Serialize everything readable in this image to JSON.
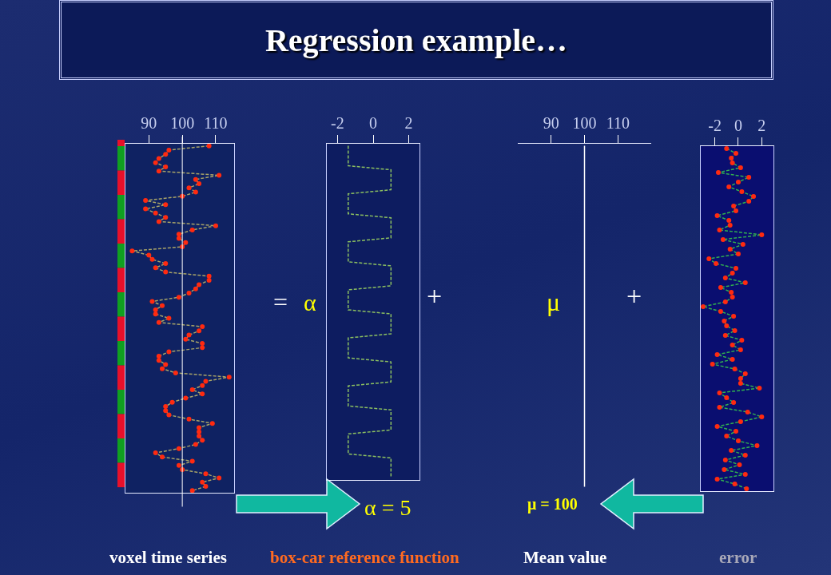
{
  "chart_data": [
    {
      "type": "other",
      "title": "Regression example…"
    },
    {
      "type": "line",
      "orientation": "horizontal",
      "xlabel": "voxel time series",
      "annotations": [
        "="
      ],
      "xlim": [
        83,
        115.5
      ],
      "xticks": [
        90,
        100,
        110
      ],
      "tick_labels": "x",
      "marker": "circle",
      "line_style": "dashed",
      "ref_lines": [
        {
          "axis": "x",
          "value": 100,
          "color": "#ffffff"
        }
      ],
      "categories": [
        null,
        null,
        null,
        null,
        null,
        null,
        null,
        null,
        null,
        null,
        null,
        null,
        null,
        null,
        null,
        null,
        null,
        null,
        null,
        null,
        null,
        null,
        null,
        null,
        null,
        null,
        null,
        null,
        null,
        null,
        null,
        null,
        null,
        null,
        null,
        null,
        null,
        null,
        null,
        null,
        null,
        null,
        null,
        null,
        null,
        null,
        null,
        null,
        null,
        null,
        null,
        null,
        null,
        null,
        null,
        null,
        null,
        null,
        null,
        null,
        null,
        null,
        null,
        null,
        null,
        null,
        null,
        null,
        null,
        null,
        null,
        null,
        null,
        null,
        null,
        null,
        null,
        null,
        null,
        null,
        null,
        null,
        null
      ],
      "series": [
        {
          "color": "#a8a468",
          "values": [
            108,
            96,
            95,
            93,
            92,
            95,
            93,
            111,
            104,
            105,
            102,
            104,
            100,
            89,
            95,
            89,
            92,
            95,
            93,
            110,
            103,
            99,
            99,
            101,
            100,
            85,
            90,
            91,
            95,
            92,
            95,
            108,
            108,
            105,
            104,
            102,
            99,
            91,
            94,
            92,
            92,
            96,
            93,
            106,
            105,
            102,
            101,
            106,
            106,
            96,
            93,
            93,
            95,
            94,
            98,
            114,
            107,
            106,
            103,
            106,
            101,
            97,
            95,
            95,
            96,
            102,
            109,
            105,
            105,
            105,
            106,
            104,
            99,
            92,
            94,
            103,
            99,
            100,
            107,
            111,
            106,
            107,
            103
          ],
          "colors": [
            "#ff2a10",
            "#ff2a10",
            "#ff2a10",
            "#ff2a10",
            "#ff2a10",
            "#ff2a10",
            "#ff2a10",
            "#ff2a10",
            "#ff2a10",
            "#ff2a10",
            "#ff2a10",
            "#ff2a10",
            "#ff2a10",
            "#ff2a10",
            "#ff2a10",
            "#ff2a10",
            "#ff2a10",
            "#ff2a10",
            "#ff2a10",
            "#ff2a10",
            "#ff2a10",
            "#ff2a10",
            "#ff2a10",
            "#ff2a10",
            "#ff2a10",
            "#ff2a10",
            "#ff2a10",
            "#ff2a10",
            "#ff2a10",
            "#ff2a10",
            "#ff2a10",
            "#ff2a10",
            "#ff2a10",
            "#ff2a10",
            "#ff2a10",
            "#ff2a10",
            "#ff2a10",
            "#ff2a10",
            "#ff2a10",
            "#ff2a10",
            "#ff2a10",
            "#ff2a10",
            "#ff2a10",
            "#ff2a10",
            "#ff2a10",
            "#ff2a10",
            "#ff2a10",
            "#ff2a10",
            "#ff2a10",
            "#ff2a10",
            "#ff2a10",
            "#ff2a10",
            "#ff2a10",
            "#ff2a10",
            "#ff2a10",
            "#ff2a10",
            "#ff2a10",
            "#ff2a10",
            "#ff2a10",
            "#ff2a10",
            "#ff2a10",
            "#ff2a10",
            "#ff2a10",
            "#ff2a10",
            "#ff2a10",
            "#ff2a10",
            "#ff2a10",
            "#ff2a10",
            "#ff2a10",
            "#ff2a10",
            "#ff2a10",
            "#ff2a10",
            "#ff2a10",
            "#ff2a10",
            "#ff2a10",
            "#ff2a10",
            "#ff2a10",
            "#ff2a10",
            "#ff2a10",
            "#ff2a10",
            "#ff2a10",
            "#ff2a10",
            "#ff2a10"
          ]
        }
      ]
    },
    {
      "type": "line",
      "orientation": "horizontal",
      "xlabel": "box-car reference function",
      "annotations": [
        "α",
        "+",
        "α = 5"
      ],
      "xlim": [
        -2.6,
        2.6
      ],
      "xticks": [
        -2,
        0,
        2
      ],
      "tick_labels": "x",
      "line_style": "dashed",
      "categories": [
        null,
        null,
        null,
        null,
        null,
        null,
        null,
        null,
        null,
        null,
        null,
        null,
        null,
        null,
        null,
        null,
        null,
        null,
        null,
        null,
        null,
        null,
        null,
        null,
        null,
        null,
        null,
        null,
        null,
        null,
        null,
        null,
        null,
        null,
        null,
        null,
        null,
        null,
        null,
        null,
        null,
        null,
        null,
        null,
        null,
        null,
        null,
        null,
        null,
        null,
        null,
        null,
        null,
        null,
        null,
        null,
        null,
        null,
        null,
        null,
        null,
        null,
        null,
        null,
        null,
        null,
        null,
        null,
        null,
        null,
        null,
        null,
        null,
        null,
        null,
        null,
        null,
        null,
        null,
        null,
        null,
        null,
        null,
        null
      ],
      "series": [
        {
          "color": "#8cc060",
          "values": [
            -1.4,
            -1.4,
            -1.4,
            -1.4,
            -1.4,
            -1.4,
            1,
            1,
            1,
            1,
            1,
            1,
            -1.4,
            -1.4,
            -1.4,
            -1.4,
            -1.4,
            -1.4,
            1,
            1,
            1,
            1,
            1,
            1,
            -1.4,
            -1.4,
            -1.4,
            -1.4,
            -1.4,
            -1.4,
            1,
            1,
            1,
            1,
            1,
            1,
            -1.4,
            -1.4,
            -1.4,
            -1.4,
            -1.4,
            -1.4,
            1,
            1,
            1,
            1,
            1,
            1,
            -1.4,
            -1.4,
            -1.4,
            -1.4,
            -1.4,
            -1.4,
            1,
            1,
            1,
            1,
            1,
            1,
            -1.4,
            -1.4,
            -1.4,
            -1.4,
            -1.4,
            -1.4,
            1,
            1,
            1,
            1,
            1,
            1,
            -1.4,
            -1.4,
            -1.4,
            -1.4,
            -1.4,
            -1.4,
            1,
            1,
            1,
            1,
            1,
            1
          ]
        }
      ]
    },
    {
      "type": "line",
      "orientation": "horizontal",
      "xlabel": "Mean value",
      "annotations": [
        "μ",
        "+",
        "μ = 100"
      ],
      "xlim": [
        80,
        120
      ],
      "xticks": [
        90,
        100,
        110
      ],
      "tick_labels": "x",
      "categories": [
        null,
        null,
        null,
        null,
        null,
        null,
        null,
        null,
        null,
        null,
        null,
        null,
        null,
        null,
        null,
        null,
        null,
        null,
        null,
        null,
        null,
        null,
        null,
        null,
        null,
        null,
        null,
        null,
        null,
        null,
        null,
        null,
        null,
        null,
        null,
        null,
        null,
        null,
        null,
        null,
        null,
        null,
        null,
        null,
        null,
        null,
        null,
        null,
        null,
        null,
        null,
        null,
        null,
        null,
        null,
        null,
        null,
        null,
        null,
        null,
        null,
        null,
        null,
        null,
        null,
        null,
        null,
        null,
        null,
        null,
        null,
        null,
        null,
        null,
        null,
        null,
        null,
        null,
        null,
        null,
        null,
        null,
        null,
        null
      ],
      "series": [
        {
          "color": "#ffffff",
          "values": [
            100,
            100,
            100,
            100,
            100,
            100,
            100,
            100,
            100,
            100,
            100,
            100,
            100,
            100,
            100,
            100,
            100,
            100,
            100,
            100,
            100,
            100,
            100,
            100,
            100,
            100,
            100,
            100,
            100,
            100,
            100,
            100,
            100,
            100,
            100,
            100,
            100,
            100,
            100,
            100,
            100,
            100,
            100,
            100,
            100,
            100,
            100,
            100,
            100,
            100,
            100,
            100,
            100,
            100,
            100,
            100,
            100,
            100,
            100,
            100,
            100,
            100,
            100,
            100,
            100,
            100,
            100,
            100,
            100,
            100,
            100,
            100,
            100,
            100,
            100,
            100,
            100,
            100,
            100,
            100,
            100,
            100,
            100,
            100
          ]
        }
      ]
    },
    {
      "type": "line",
      "orientation": "horizontal",
      "xlabel": "error",
      "xlim": [
        -3.2,
        3
      ],
      "xticks": [
        -2,
        0,
        2
      ],
      "tick_labels": "x",
      "marker": "circle",
      "line_style": "dashed",
      "categories": [
        null,
        null,
        null,
        null,
        null,
        null,
        null,
        null,
        null,
        null,
        null,
        null,
        null,
        null,
        null,
        null,
        null,
        null,
        null,
        null,
        null,
        null,
        null,
        null,
        null,
        null,
        null,
        null,
        null,
        null,
        null,
        null,
        null,
        null,
        null,
        null,
        null,
        null,
        null,
        null,
        null,
        null,
        null,
        null,
        null,
        null,
        null,
        null,
        null,
        null,
        null,
        null,
        null,
        null,
        null,
        null,
        null,
        null,
        null,
        null,
        null,
        null,
        null,
        null,
        null,
        null,
        null,
        null,
        null,
        null,
        null,
        null
      ],
      "series": [
        {
          "color": "#30b050",
          "values": [
            -1.0,
            -0.2,
            -0.6,
            -0.5,
            0.2,
            -1.7,
            0.9,
            0.0,
            -0.8,
            0.3,
            1.3,
            0.9,
            -0.4,
            -0.2,
            -1.8,
            -0.8,
            -0.7,
            -1.6,
            2.0,
            -1.3,
            0.4,
            -0.7,
            0.0,
            -2.5,
            -1.9,
            -0.2,
            -0.5,
            -1.1,
            0.6,
            -1.5,
            -0.6,
            -0.5,
            -1.1,
            -3.0,
            -1.5,
            -0.4,
            -1.2,
            -1.0,
            -0.3,
            -1.1,
            0.3,
            -0.5,
            0.2,
            -1.8,
            -0.5,
            -2.2,
            -0.3,
            0.6,
            0.2,
            0.2,
            1.8,
            -1.6,
            -1.0,
            -0.4,
            -1.6,
            0.8,
            2.0,
            0.2,
            -1.8,
            -0.2,
            -1.0,
            0.0,
            1.6,
            -0.6,
            0.6,
            -1.1,
            0.1,
            -1.2,
            0.6,
            -1.8,
            -0.3,
            0.7
          ],
          "colors": [
            "#ff2a10",
            "#ff2a10",
            "#ff2a10",
            "#ff2a10",
            "#ff2a10",
            "#ff2a10",
            "#ff2a10",
            "#ff2a10",
            "#ff2a10",
            "#ff2a10",
            "#ff2a10",
            "#ff2a10",
            "#ff2a10",
            "#ff2a10",
            "#ff2a10",
            "#ff2a10",
            "#ff2a10",
            "#ff2a10",
            "#ff2a10",
            "#ff2a10",
            "#ff2a10",
            "#ff2a10",
            "#ff2a10",
            "#ff2a10",
            "#ff2a10",
            "#ff2a10",
            "#ff2a10",
            "#ff2a10",
            "#ff2a10",
            "#ff2a10",
            "#ff2a10",
            "#ff2a10",
            "#ff2a10",
            "#ff2a10",
            "#ff2a10",
            "#ff2a10",
            "#ff2a10",
            "#ff2a10",
            "#ff2a10",
            "#ff2a10",
            "#ff2a10",
            "#ff2a10",
            "#ff2a10",
            "#ff2a10",
            "#ff2a10",
            "#ff2a10",
            "#ff2a10",
            "#ff2a10",
            "#ff2a10",
            "#ff2a10",
            "#ff2a10",
            "#ff2a10",
            "#ff2a10",
            "#ff2a10",
            "#ff2a10",
            "#ff2a10",
            "#ff2a10",
            "#ff2a10",
            "#ff2a10",
            "#ff2a10",
            "#ff2a10",
            "#ff2a10",
            "#ff2a10",
            "#ff2a10",
            "#ff2a10",
            "#ff2a10",
            "#ff2a10",
            "#ff2a10",
            "#ff2a10",
            "#ff2a10",
            "#ff2a10",
            "#ff2a10"
          ]
        }
      ]
    }
  ]
}
